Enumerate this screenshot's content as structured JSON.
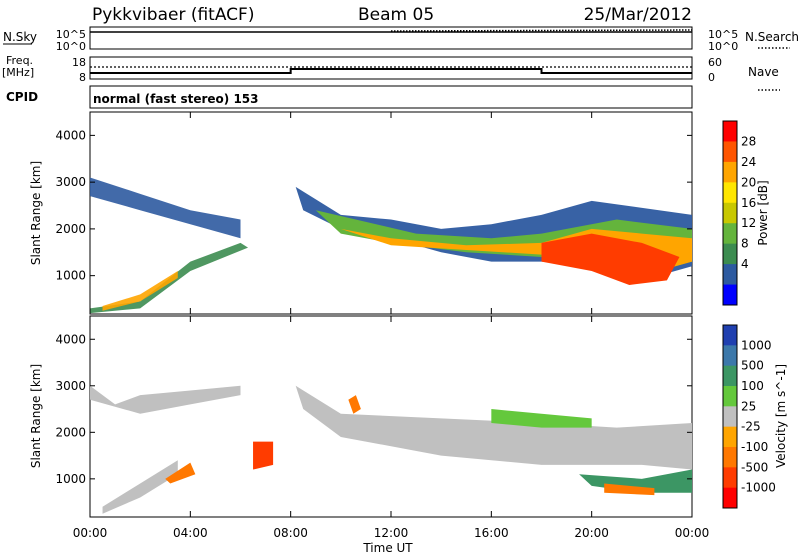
{
  "header": {
    "station": "Pykkvibaer (fitACF)",
    "beam": "Beam 05",
    "date": "25/Mar/2012"
  },
  "top_panel": {
    "left_label": "N.Sky",
    "right_label": "N.Search",
    "left_ticks": [
      "10^5",
      "10^0"
    ],
    "right_ticks": [
      "10^5",
      "10^0"
    ]
  },
  "freq_panel": {
    "left_label_line1": "Freq.",
    "left_label_line2": "[MHz]",
    "right_label": "Nave",
    "left_ticks": [
      "18",
      "8"
    ],
    "right_ticks": [
      "60",
      "0"
    ]
  },
  "cpid": {
    "label": "CPID",
    "text": "normal (fast stereo) 153"
  },
  "chart_data": [
    {
      "type": "heatmap",
      "title": "Power",
      "ylabel": "Slant Range [km]",
      "ylim": [
        180,
        4500
      ],
      "yticks": [
        1000,
        2000,
        3000,
        4000
      ],
      "xlim": [
        0,
        24
      ],
      "colorbar": {
        "label": "Power [dB]",
        "ticks": [
          "28",
          "24",
          "20",
          "16",
          "12",
          "8",
          "4"
        ],
        "colors": [
          "#ff0000",
          "#ff5500",
          "#ffa500",
          "#ffe600",
          "#c8c800",
          "#64b43c",
          "#3c8c50",
          "#2d5aa0",
          "#0000ff"
        ]
      }
    },
    {
      "type": "heatmap",
      "title": "Velocity",
      "ylabel": "Slant Range [km]",
      "ylim": [
        180,
        4500
      ],
      "yticks": [
        1000,
        2000,
        3000,
        4000
      ],
      "xlim": [
        0,
        24
      ],
      "xticks": [
        "00:00",
        "04:00",
        "08:00",
        "12:00",
        "16:00",
        "20:00",
        "00:00"
      ],
      "xlabel": "Time UT",
      "colorbar": {
        "label": "Velocity [m s^-1]",
        "ticks": [
          "1000",
          "500",
          "100",
          "25",
          "-25",
          "-100",
          "-500",
          "-1000"
        ],
        "colors": [
          "#2040b0",
          "#3c78aa",
          "#3c9664",
          "#64c83c",
          "#c0c0c0",
          "#ffa500",
          "#ff7800",
          "#ff3c00",
          "#ff0000"
        ]
      }
    }
  ]
}
